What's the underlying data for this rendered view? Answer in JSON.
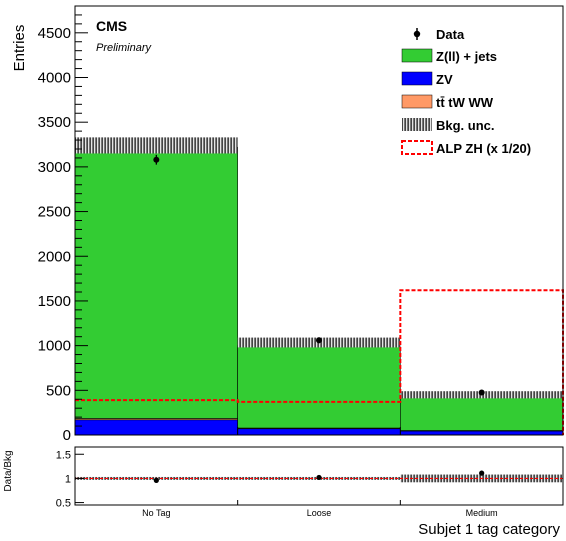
{
  "chart_data": {
    "type": "bar",
    "stacked": true,
    "experiment": "CMS",
    "status": "Preliminary",
    "ylabel": "Entries",
    "xlabel": "Subjet 1 tag category",
    "categories": [
      "No Tag",
      "Loose",
      "Medium"
    ],
    "ylim": [
      0,
      4800
    ],
    "yticks": [
      0,
      500,
      1000,
      1500,
      2000,
      2500,
      3000,
      3500,
      4000,
      4500
    ],
    "series": [
      {
        "name": "ZV",
        "kind": "stack",
        "color": "#0000ff",
        "values": [
          170,
          70,
          45
        ]
      },
      {
        "name": "tt̄ tW WW",
        "kind": "stack",
        "color": "#ff9966",
        "values": [
          15,
          8,
          5
        ]
      },
      {
        "name": "Z(ll) + jets",
        "kind": "stack",
        "color": "#33cc33",
        "values": [
          3035,
          922,
          380
        ]
      }
    ],
    "data": {
      "name": "Data",
      "values": [
        3080,
        1060,
        475
      ],
      "errors": [
        55,
        33,
        22
      ]
    },
    "bkg_unc": {
      "name": "Bkg. unc.",
      "lower": [
        3150,
        980,
        410
      ],
      "upper": [
        3330,
        1090,
        490
      ]
    },
    "signal": {
      "name": "ALP ZH (x 1/20)",
      "color": "#ff0000",
      "values": [
        390,
        370,
        1620
      ]
    },
    "ratio": {
      "ylabel": "Data/Bkg",
      "ylim": [
        0.45,
        1.65
      ],
      "yticks": [
        0.5,
        1,
        1.5
      ],
      "yticklabels": [
        "0.5",
        "1",
        "1.5"
      ],
      "values": [
        0.96,
        1.02,
        1.11
      ],
      "errors": [
        0.02,
        0.03,
        0.05
      ],
      "unc_lower": [
        0.97,
        0.97,
        0.92
      ],
      "unc_upper": [
        1.03,
        1.03,
        1.08
      ]
    },
    "legend": {
      "position": "top-right",
      "entries": [
        "Data",
        "Z(ll) + jets",
        "ZV",
        "tt̄ tW WW",
        "Bkg. unc.",
        "ALP ZH (x 1/20)"
      ]
    }
  }
}
